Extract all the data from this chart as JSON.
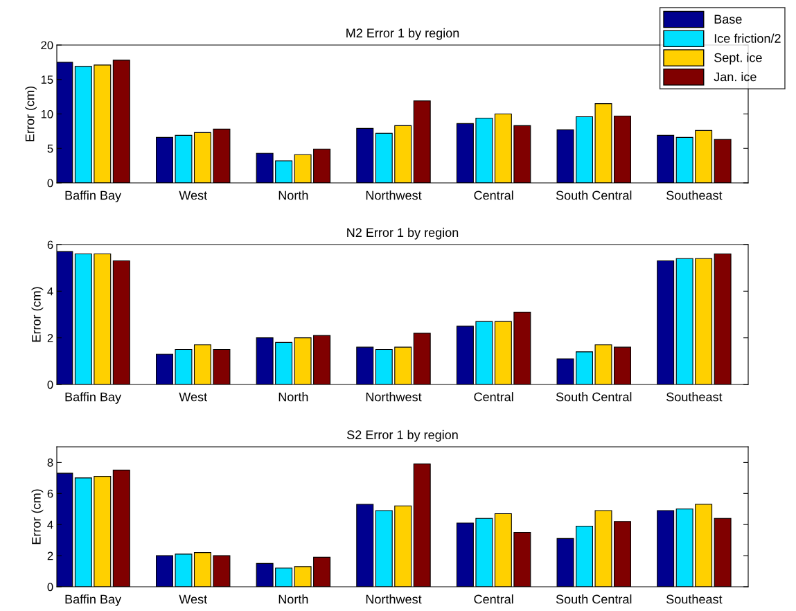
{
  "chart_data": [
    {
      "type": "bar",
      "title": "M2 Error 1 by region",
      "ylabel": "Error (cm)",
      "categories": [
        "Baffin Bay",
        "West",
        "North",
        "Northwest",
        "Central",
        "South Central",
        "Southeast"
      ],
      "ylim": [
        0,
        20
      ],
      "yticks": [
        0,
        5,
        10,
        15,
        20
      ],
      "grid": false,
      "legend": "top right",
      "series": [
        {
          "name": "Base",
          "color": "#00008f",
          "values": [
            17.5,
            6.6,
            4.3,
            7.9,
            8.6,
            7.7,
            6.9
          ]
        },
        {
          "name": "Ice friction/2",
          "color": "#00e0ff",
          "values": [
            16.9,
            6.9,
            3.2,
            7.2,
            9.4,
            9.6,
            6.6
          ]
        },
        {
          "name": "Sept. ice",
          "color": "#ffd000",
          "values": [
            17.1,
            7.3,
            4.1,
            8.3,
            10.0,
            11.5,
            7.6
          ]
        },
        {
          "name": "Jan. ice",
          "color": "#800000",
          "values": [
            17.8,
            7.8,
            4.9,
            11.9,
            8.3,
            9.7,
            6.3
          ]
        }
      ]
    },
    {
      "type": "bar",
      "title": "N2 Error 1 by region",
      "ylabel": "Error (cm)",
      "categories": [
        "Baffin Bay",
        "West",
        "North",
        "Northwest",
        "Central",
        "South Central",
        "Southeast"
      ],
      "ylim": [
        0,
        6
      ],
      "yticks": [
        0,
        2,
        4,
        6
      ],
      "grid": false,
      "series": [
        {
          "color": "#00008f",
          "values": [
            5.7,
            1.3,
            2.0,
            1.6,
            2.5,
            1.1,
            5.3
          ]
        },
        {
          "color": "#00e0ff",
          "values": [
            5.6,
            1.5,
            1.8,
            1.5,
            2.7,
            1.4,
            5.4
          ]
        },
        {
          "color": "#ffd000",
          "values": [
            5.6,
            1.7,
            2.0,
            1.6,
            2.7,
            1.7,
            5.4
          ]
        },
        {
          "color": "#800000",
          "values": [
            5.3,
            1.5,
            2.1,
            2.2,
            3.1,
            1.6,
            5.6
          ]
        }
      ]
    },
    {
      "type": "bar",
      "title": "S2 Error 1 by region",
      "ylabel": "Error (cm)",
      "categories": [
        "Baffin Bay",
        "West",
        "North",
        "Northwest",
        "Central",
        "South Central",
        "Southeast"
      ],
      "ylim": [
        0,
        9
      ],
      "yticks": [
        0,
        2,
        4,
        6,
        8
      ],
      "grid": false,
      "series": [
        {
          "color": "#00008f",
          "values": [
            7.3,
            2.0,
            1.5,
            5.3,
            4.1,
            3.1,
            4.9
          ]
        },
        {
          "color": "#00e0ff",
          "values": [
            7.0,
            2.1,
            1.2,
            4.9,
            4.4,
            3.9,
            5.0
          ]
        },
        {
          "color": "#ffd000",
          "values": [
            7.1,
            2.2,
            1.3,
            5.2,
            4.7,
            4.9,
            5.3
          ]
        },
        {
          "color": "#800000",
          "values": [
            7.5,
            2.0,
            1.9,
            7.9,
            3.5,
            4.2,
            4.4
          ]
        }
      ]
    }
  ]
}
